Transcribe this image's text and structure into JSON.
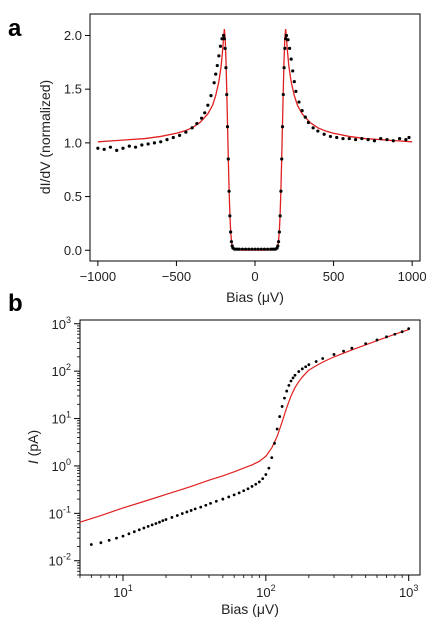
{
  "chart_data": [
    {
      "panel_label": "a",
      "type": "scatter",
      "xlabel": "Bias (μV)",
      "ylabel": "dI/dV (normalized)",
      "xlim": [
        -1050,
        1050
      ],
      "ylim": [
        -0.1,
        2.2
      ],
      "xticks": [
        -1000,
        -500,
        0,
        500,
        1000
      ],
      "xtick_labels": [
        "−1000",
        "−500",
        "0",
        "500",
        "1000"
      ],
      "yticks": [
        0.0,
        0.5,
        1.0,
        1.5,
        2.0
      ],
      "ytick_labels": [
        "0.0",
        "0.5",
        "1.0",
        "1.5",
        "2.0"
      ],
      "grid": false,
      "series": [
        {
          "kind": "points",
          "color": "#000000",
          "x": [
            -1000,
            -960,
            -920,
            -880,
            -840,
            -800,
            -760,
            -720,
            -680,
            -640,
            -600,
            -560,
            -520,
            -480,
            -440,
            -400,
            -370,
            -340,
            -320,
            -300,
            -280,
            -260,
            -250,
            -240,
            -230,
            -220,
            -210,
            -200,
            -195,
            -190,
            -185,
            -180,
            -175,
            -170,
            -165,
            -160,
            -155,
            -150,
            -145,
            -140,
            -130,
            -120,
            -110,
            -100,
            -80,
            -60,
            -40,
            -20,
            0,
            20,
            40,
            60,
            80,
            100,
            110,
            120,
            130,
            140,
            145,
            150,
            155,
            160,
            165,
            170,
            175,
            180,
            185,
            190,
            195,
            200,
            210,
            220,
            230,
            240,
            250,
            260,
            280,
            300,
            320,
            340,
            370,
            400,
            440,
            480,
            520,
            560,
            600,
            640,
            680,
            720,
            760,
            800,
            840,
            880,
            920,
            960,
            980
          ],
          "y": [
            0.95,
            0.94,
            0.96,
            0.93,
            0.95,
            0.97,
            0.96,
            0.98,
            0.99,
            1.0,
            1.01,
            1.03,
            1.05,
            1.07,
            1.1,
            1.14,
            1.18,
            1.23,
            1.28,
            1.35,
            1.44,
            1.56,
            1.64,
            1.72,
            1.81,
            1.9,
            1.97,
            2.0,
            1.97,
            1.88,
            1.7,
            1.45,
            1.15,
            0.85,
            0.55,
            0.32,
            0.17,
            0.08,
            0.04,
            0.02,
            0.01,
            0.01,
            0.01,
            0.01,
            0.01,
            0.01,
            0.01,
            0.01,
            0.01,
            0.01,
            0.01,
            0.01,
            0.01,
            0.01,
            0.01,
            0.01,
            0.01,
            0.02,
            0.04,
            0.08,
            0.17,
            0.32,
            0.55,
            0.85,
            1.15,
            1.45,
            1.7,
            1.88,
            1.97,
            2.0,
            1.96,
            1.88,
            1.78,
            1.67,
            1.57,
            1.48,
            1.38,
            1.3,
            1.24,
            1.19,
            1.14,
            1.11,
            1.08,
            1.06,
            1.05,
            1.04,
            1.04,
            1.03,
            1.04,
            1.03,
            1.02,
            1.04,
            1.03,
            1.02,
            1.04,
            1.03,
            1.05
          ]
        },
        {
          "kind": "line",
          "color": "#e02020",
          "x": [
            -1000,
            -900,
            -800,
            -700,
            -600,
            -500,
            -450,
            -400,
            -350,
            -300,
            -270,
            -250,
            -230,
            -215,
            -205,
            -200,
            -195,
            -190,
            -185,
            -180,
            -175,
            -170,
            -165,
            -160,
            -155,
            -150,
            -145,
            -140,
            -130,
            -120,
            -100,
            -60,
            0,
            60,
            100,
            120,
            130,
            140,
            145,
            150,
            155,
            160,
            165,
            170,
            175,
            180,
            185,
            190,
            195,
            200,
            205,
            215,
            230,
            250,
            270,
            300,
            350,
            400,
            450,
            500,
            600,
            700,
            800,
            900,
            1000
          ],
          "y": [
            1.01,
            1.02,
            1.03,
            1.04,
            1.06,
            1.09,
            1.11,
            1.14,
            1.19,
            1.27,
            1.35,
            1.44,
            1.57,
            1.72,
            1.88,
            1.98,
            2.06,
            1.98,
            1.78,
            1.5,
            1.18,
            0.86,
            0.57,
            0.34,
            0.18,
            0.09,
            0.04,
            0.02,
            0.01,
            0.005,
            0.003,
            0.002,
            0.002,
            0.002,
            0.003,
            0.005,
            0.01,
            0.02,
            0.04,
            0.09,
            0.18,
            0.34,
            0.57,
            0.86,
            1.18,
            1.5,
            1.78,
            1.98,
            2.06,
            1.98,
            1.88,
            1.72,
            1.57,
            1.44,
            1.35,
            1.27,
            1.19,
            1.14,
            1.11,
            1.09,
            1.06,
            1.04,
            1.03,
            1.02,
            1.01
          ]
        }
      ]
    },
    {
      "panel_label": "b",
      "type": "scatter",
      "xlabel": "Bias (μV)",
      "ylabel_italic": "I",
      "ylabel_rest": " (pA)",
      "xscale": "log",
      "yscale": "log",
      "xlim": [
        5,
        1200
      ],
      "ylim": [
        0.005,
        1200
      ],
      "xticks": [
        10,
        100,
        1000
      ],
      "yticks": [
        0.01,
        0.1,
        1,
        10,
        100,
        1000
      ],
      "tick_base": "10",
      "xtick_exponents": [
        "1",
        "2",
        "3"
      ],
      "ytick_exponents": [
        "-2",
        "-1",
        "0",
        "1",
        "2",
        "3"
      ],
      "grid": false,
      "series": [
        {
          "kind": "points",
          "color": "#000000",
          "x": [
            6,
            7,
            8,
            9,
            10,
            11,
            12,
            13,
            14,
            15,
            16,
            17,
            18,
            19,
            20,
            22,
            24,
            26,
            28,
            30,
            32,
            35,
            38,
            41,
            45,
            50,
            55,
            60,
            65,
            70,
            75,
            80,
            85,
            90,
            95,
            100,
            105,
            110,
            115,
            120,
            125,
            130,
            135,
            140,
            145,
            150,
            155,
            160,
            170,
            180,
            190,
            200,
            225,
            250,
            300,
            350,
            400,
            500,
            600,
            700,
            800,
            900,
            1000
          ],
          "y": [
            0.022,
            0.024,
            0.027,
            0.03,
            0.033,
            0.037,
            0.041,
            0.045,
            0.049,
            0.053,
            0.057,
            0.061,
            0.065,
            0.07,
            0.074,
            0.082,
            0.09,
            0.099,
            0.107,
            0.115,
            0.124,
            0.135,
            0.148,
            0.162,
            0.18,
            0.2,
            0.222,
            0.245,
            0.27,
            0.3,
            0.33,
            0.37,
            0.41,
            0.46,
            0.54,
            0.66,
            0.9,
            1.5,
            3.0,
            6.0,
            11,
            18,
            27,
            38,
            50,
            62,
            72,
            82,
            98,
            112,
            124,
            137,
            160,
            185,
            225,
            265,
            305,
            380,
            455,
            530,
            600,
            680,
            790
          ]
        },
        {
          "kind": "line",
          "color": "#e02020",
          "x": [
            5,
            7,
            10,
            15,
            20,
            30,
            40,
            50,
            60,
            70,
            80,
            90,
            100,
            110,
            120,
            130,
            140,
            150,
            160,
            170,
            180,
            190,
            200,
            225,
            250,
            300,
            400,
            500,
            600,
            700,
            800,
            900,
            1000
          ],
          "y": [
            0.065,
            0.09,
            0.13,
            0.19,
            0.25,
            0.37,
            0.5,
            0.62,
            0.75,
            0.9,
            1.05,
            1.25,
            1.6,
            2.4,
            4.2,
            8.5,
            17,
            30,
            45,
            60,
            75,
            90,
            105,
            130,
            155,
            200,
            280,
            360,
            440,
            520,
            600,
            680,
            750
          ]
        }
      ]
    }
  ]
}
